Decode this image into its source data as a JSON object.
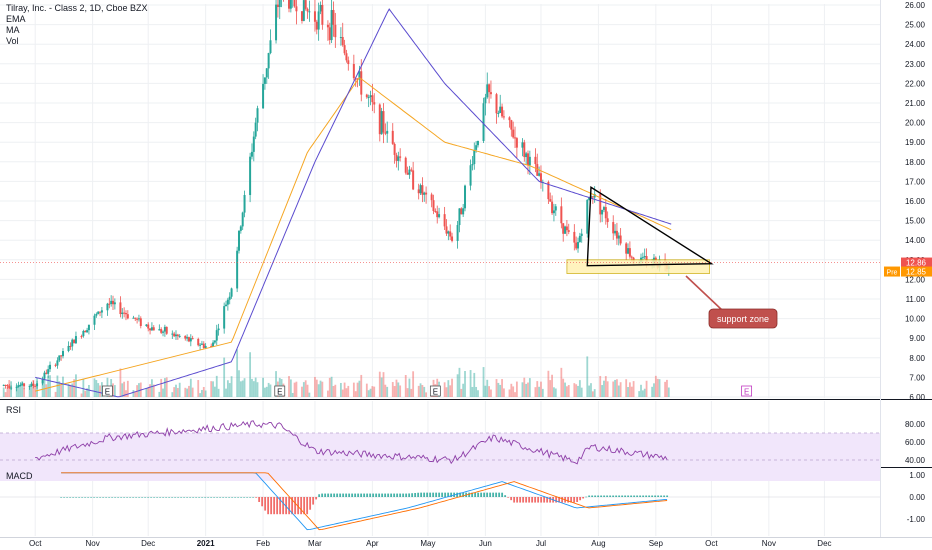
{
  "header": {
    "symbol_line": "Tilray, Inc. - Class 2, 1D, Cboe BZX",
    "indicators": [
      "EMA",
      "MA",
      "Vol"
    ]
  },
  "panes": {
    "rsi_label": "RSI",
    "macd_label": "MACD"
  },
  "price_badges": {
    "last": "12.86",
    "pre_label": "Pre",
    "pre_value": "12.85"
  },
  "annotation": {
    "support_label": "support zone"
  },
  "earnings_marker": "E",
  "colors": {
    "up": "#26a69a",
    "down": "#ef5350",
    "ema": "#f5a623",
    "ma": "#5b4ccf",
    "rsi": "#8e3fa8",
    "rsi_band": "#f1e6fb",
    "macd": "#2196f3",
    "signal": "#ff6d00",
    "support_fill": "#fff2b3",
    "badge_red": "#ef5350",
    "badge_orange": "#ff9800",
    "callout": "#c0504d"
  },
  "chart_data": [
    {
      "type": "candlestick",
      "x_axis_labels": [
        "Oct",
        "Nov",
        "Dec",
        "2021",
        "Feb",
        "Mar",
        "Apr",
        "May",
        "Jun",
        "Jul",
        "Aug",
        "Sep",
        "Oct",
        "Nov",
        "Dec"
      ],
      "y_ticks": [
        "6.00",
        "7.00",
        "8.00",
        "9.00",
        "10.00",
        "11.00",
        "12.00",
        "13.00",
        "14.00",
        "15.00",
        "16.00",
        "17.00",
        "18.00",
        "19.00",
        "20.00",
        "21.00",
        "22.00",
        "23.00",
        "24.00",
        "25.00",
        "26.00"
      ],
      "ylim": [
        6,
        26.4
      ],
      "close_key_points": [
        {
          "x": "2020-10-01",
          "y": 6.6
        },
        {
          "x": "2020-11-09",
          "y": 10.8
        },
        {
          "x": "2020-12-01",
          "y": 9.6
        },
        {
          "x": "2021-01-04",
          "y": 8.5
        },
        {
          "x": "2021-01-15",
          "y": 11.6
        },
        {
          "x": "2021-01-28",
          "y": 20.0
        },
        {
          "x": "2021-02-10",
          "y": 26.5
        },
        {
          "x": "2021-03-10",
          "y": 25.0
        },
        {
          "x": "2021-03-25",
          "y": 22.0
        },
        {
          "x": "2021-04-20",
          "y": 17.5
        },
        {
          "x": "2021-05-15",
          "y": 14.0
        },
        {
          "x": "2021-06-02",
          "y": 21.5
        },
        {
          "x": "2021-06-25",
          "y": 18.0
        },
        {
          "x": "2021-07-20",
          "y": 13.5
        },
        {
          "x": "2021-07-28",
          "y": 16.5
        },
        {
          "x": "2021-08-20",
          "y": 13.0
        },
        {
          "x": "2021-09-08",
          "y": 12.86
        }
      ],
      "ema_key_points": [
        {
          "x": "2020-10-01",
          "y": 6.3
        },
        {
          "x": "2021-01-15",
          "y": 8.8
        },
        {
          "x": "2021-02-25",
          "y": 18.5
        },
        {
          "x": "2021-03-25",
          "y": 22.3
        },
        {
          "x": "2021-05-10",
          "y": 19.0
        },
        {
          "x": "2021-06-25",
          "y": 17.8
        },
        {
          "x": "2021-09-10",
          "y": 14.5
        }
      ],
      "ma_key_points": [
        {
          "x": "2020-10-01",
          "y": 7.0
        },
        {
          "x": "2020-11-15",
          "y": 6.0
        },
        {
          "x": "2021-01-15",
          "y": 7.8
        },
        {
          "x": "2021-03-01",
          "y": 18.0
        },
        {
          "x": "2021-04-10",
          "y": 25.8
        },
        {
          "x": "2021-05-10",
          "y": 22.0
        },
        {
          "x": "2021-06-30",
          "y": 17.0
        },
        {
          "x": "2021-09-10",
          "y": 14.8
        }
      ],
      "triangle": {
        "apex": {
          "x": "2021-10-01",
          "y": 12.8
        },
        "top": {
          "x": "2021-07-28",
          "y": 16.7
        },
        "base_left": {
          "x": "2021-07-26",
          "y": 12.7
        }
      },
      "support_zone": {
        "y_low": 12.3,
        "y_high": 13.0,
        "x_start": "2021-07-15",
        "x_end": "2021-09-30"
      }
    },
    {
      "type": "line",
      "name": "RSI",
      "y_ticks": [
        "40.00",
        "60.00",
        "80.00"
      ],
      "band": [
        30,
        70
      ],
      "key_points": [
        {
          "x": "2020-10-01",
          "y": 42
        },
        {
          "x": "2020-11-10",
          "y": 65
        },
        {
          "x": "2021-01-28",
          "y": 80
        },
        {
          "x": "2021-02-10",
          "y": 78
        },
        {
          "x": "2021-03-01",
          "y": 50
        },
        {
          "x": "2021-05-15",
          "y": 40
        },
        {
          "x": "2021-06-05",
          "y": 65
        },
        {
          "x": "2021-07-20",
          "y": 38
        },
        {
          "x": "2021-07-28",
          "y": 55
        },
        {
          "x": "2021-09-08",
          "y": 42
        }
      ]
    },
    {
      "type": "bar",
      "name": "MACD",
      "y_ticks": [
        "1.00",
        "0.00",
        "-1.00"
      ],
      "key_points": [
        {
          "x": "2021-01-28",
          "y": 1.1
        },
        {
          "x": "2021-02-25",
          "y": -1.5
        },
        {
          "x": "2021-04-20",
          "y": -0.5
        },
        {
          "x": "2021-06-10",
          "y": 0.7
        },
        {
          "x": "2021-07-20",
          "y": -0.5
        },
        {
          "x": "2021-09-08",
          "y": -0.1
        }
      ]
    }
  ]
}
